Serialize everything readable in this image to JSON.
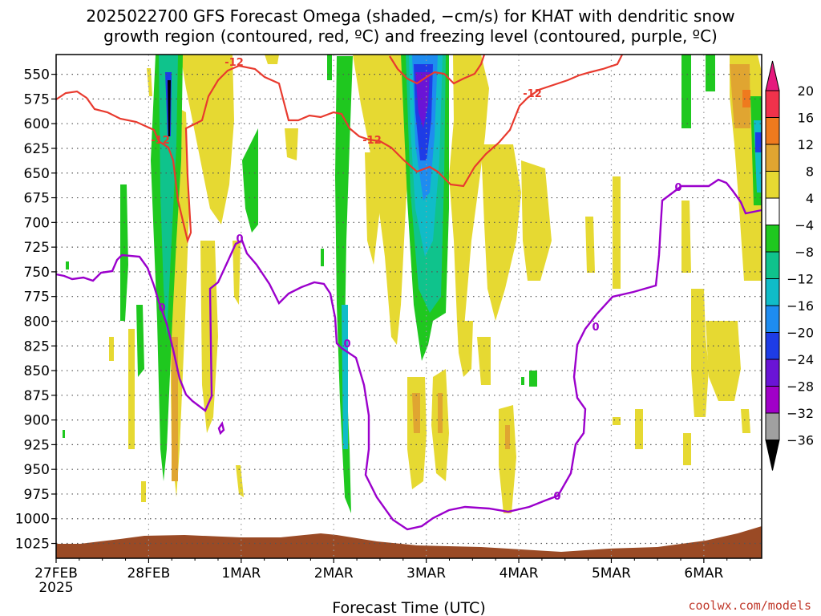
{
  "title": {
    "line1": "2025022700 GFS Forecast Omega (shaded, −cm/s) for KHAT with dendritic snow",
    "line2": "growth region (contoured, red, ºC) and freezing level (contoured, purple, ºC)"
  },
  "credit": "coolwx.com/models",
  "colors": {
    "grid": "#555555",
    "terrain": "#9a4a25",
    "red_contour": "#e83a2e",
    "purple_contour": "#9b00cc"
  },
  "chart_data": {
    "type": "heatmap",
    "xlabel": "Forecast Time (UTC)",
    "ylabel": "",
    "x_ticks": [
      {
        "label": "27FEB",
        "sub": "2025",
        "t": 0
      },
      {
        "label": "28FEB",
        "t": 24
      },
      {
        "label": "1MAR",
        "t": 48
      },
      {
        "label": "2MAR",
        "t": 72
      },
      {
        "label": "3MAR",
        "t": 96
      },
      {
        "label": "4MAR",
        "t": 120
      },
      {
        "label": "5MAR",
        "t": 144
      },
      {
        "label": "6MAR",
        "t": 168
      }
    ],
    "x_range_hours": [
      0,
      183
    ],
    "y_ticks": [
      "550",
      "575",
      "600",
      "625",
      "650",
      "675",
      "700",
      "725",
      "750",
      "775",
      "800",
      "825",
      "850",
      "875",
      "900",
      "925",
      "950",
      "975",
      "1000",
      "1025"
    ],
    "y_range_hpa": [
      530,
      1040
    ],
    "colorbar": {
      "label_values": [
        "20",
        "16",
        "12",
        "8",
        "4",
        "−4",
        "−8",
        "−12",
        "−16",
        "−20",
        "−24",
        "−28",
        "−32",
        "−36"
      ],
      "bins": [
        {
          "from": 16,
          "to": 20,
          "color": "#f0324b"
        },
        {
          "from": 12,
          "to": 16,
          "color": "#ef7a1e"
        },
        {
          "from": 8,
          "to": 12,
          "color": "#e0a531"
        },
        {
          "from": 4,
          "to": 8,
          "color": "#e6d932"
        },
        {
          "from": -4,
          "to": 4,
          "color": "#ffffff"
        },
        {
          "from": -8,
          "to": -4,
          "color": "#1fc81f"
        },
        {
          "from": -12,
          "to": -8,
          "color": "#0fc38c"
        },
        {
          "from": -16,
          "to": -12,
          "color": "#10bcc8"
        },
        {
          "from": -20,
          "to": -16,
          "color": "#1e8cf0"
        },
        {
          "from": -24,
          "to": -20,
          "color": "#1e3ce6"
        },
        {
          "from": -28,
          "to": -24,
          "color": "#6a14d6"
        },
        {
          "from": -32,
          "to": -28,
          "color": "#a000c8"
        },
        {
          "from": -36,
          "to": -32,
          "color": "#a0a0a0"
        }
      ],
      "top_arrow_color": "#e6197d",
      "bottom_arrow_color": "#000000"
    },
    "contour_labels": {
      "red": "-12",
      "purple": "0"
    }
  }
}
